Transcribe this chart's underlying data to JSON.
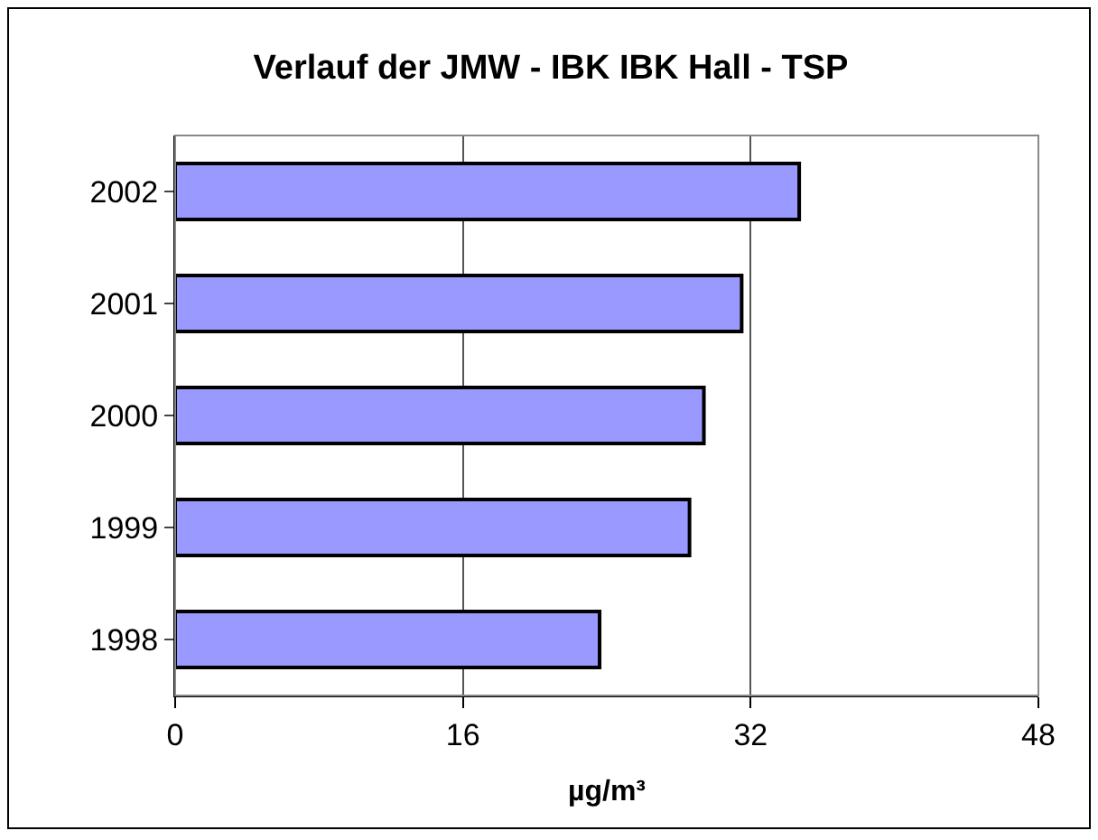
{
  "chart_data": {
    "type": "bar",
    "orientation": "horizontal",
    "title": "Verlauf der JMW - IBK IBK Hall - TSP",
    "xlabel": "µg/m³",
    "categories": [
      "2002",
      "2001",
      "2000",
      "1999",
      "1998"
    ],
    "values": [
      34.7,
      31.5,
      29.4,
      28.6,
      23.6
    ],
    "color": "#9999ff",
    "xlim": [
      0,
      48
    ],
    "xticks": [
      0,
      16,
      32,
      48
    ],
    "grid": "x",
    "legend": false
  }
}
